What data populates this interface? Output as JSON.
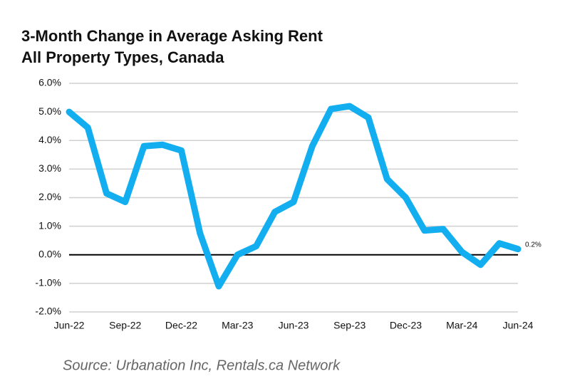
{
  "chart_data": {
    "type": "line",
    "title": "3-Month Change in Average Asking Rent",
    "subtitle": "All Property Types, Canada",
    "source": "Source: Urbanation Inc, Rentals.ca Network",
    "categories": [
      "Jun-22",
      null,
      null,
      "Sep-22",
      null,
      null,
      "Dec-22",
      null,
      null,
      "Mar-23",
      null,
      null,
      "Jun-23",
      null,
      null,
      "Sep-23",
      null,
      null,
      "Dec-23",
      null,
      null,
      "Mar-24",
      null,
      null,
      "Jun-24"
    ],
    "series": [
      {
        "name": null,
        "color": "#12aef0",
        "values": [
          5.0,
          4.45,
          2.15,
          1.85,
          3.8,
          3.85,
          3.65,
          0.75,
          -1.1,
          0.0,
          0.3,
          1.5,
          1.85,
          3.8,
          5.1,
          5.2,
          4.8,
          2.65,
          2.0,
          0.85,
          0.9,
          0.1,
          -0.35,
          0.4,
          0.2
        ],
        "value_labels": [
          null,
          null,
          null,
          null,
          null,
          null,
          null,
          null,
          null,
          null,
          null,
          null,
          null,
          null,
          null,
          null,
          null,
          null,
          null,
          null,
          null,
          null,
          null,
          null,
          "0.2%"
        ]
      }
    ],
    "ylim": [
      -2,
      6
    ],
    "yticks": [
      {
        "value": -2,
        "label": "-2.0%"
      },
      {
        "value": -1,
        "label": "-1.0%"
      },
      {
        "value": 0,
        "label": "0.0%"
      },
      {
        "value": 1,
        "label": "1.0%"
      },
      {
        "value": 2,
        "label": "2.0%"
      },
      {
        "value": 3,
        "label": "3.0%"
      },
      {
        "value": 4,
        "label": "4.0%"
      },
      {
        "value": 5,
        "label": "5.0%"
      },
      {
        "value": 6,
        "label": "6.0%"
      }
    ],
    "grid": true,
    "zero_line": true
  }
}
